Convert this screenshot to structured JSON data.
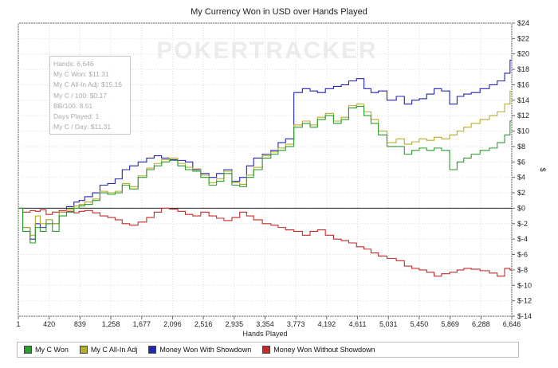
{
  "chart_data": {
    "type": "line",
    "title": "My Currency Won in USD over Hands Played",
    "xlabel": "Hands Played",
    "ylabel": "$",
    "x_ticks": [
      "1",
      "420",
      "839",
      "1,258",
      "1,677",
      "2,096",
      "2,516",
      "2,935",
      "3,354",
      "3,773",
      "4,192",
      "4,611",
      "5,031",
      "5,450",
      "5,869",
      "6,288",
      "6,646"
    ],
    "y_ticks": [
      "$24",
      "$22",
      "$20",
      "$18",
      "$16",
      "$14",
      "$12",
      "$10",
      "$8",
      "$6",
      "$4",
      "$2",
      "$0",
      "$-2",
      "$-4",
      "$-6",
      "$-8",
      "$-10",
      "$-12",
      "$-14"
    ],
    "xlim": [
      1,
      6646
    ],
    "ylim": [
      -14,
      24
    ],
    "grid": true,
    "legend_position": "bottom",
    "watermark": "POKERTRACKER",
    "series": [
      {
        "name": "My C Won",
        "color": "#2e9b2e",
        "x": [
          1,
          120,
          200,
          260,
          330,
          420,
          500,
          600,
          700,
          800,
          839,
          950,
          1050,
          1150,
          1258,
          1350,
          1450,
          1550,
          1677,
          1780,
          1880,
          1980,
          2096,
          2200,
          2300,
          2400,
          2516,
          2620,
          2720,
          2820,
          2935,
          3030,
          3120,
          3220,
          3354,
          3450,
          3550,
          3650,
          3773,
          3880,
          3980,
          4080,
          4192,
          4300,
          4400,
          4500,
          4611,
          4700,
          4800,
          4900,
          5031,
          5150,
          5250,
          5350,
          5450,
          5550,
          5650,
          5750,
          5869,
          5950,
          6050,
          6150,
          6288,
          6400,
          6500,
          6600,
          6646
        ],
        "y": [
          0,
          -3,
          -4.5,
          -2.5,
          -3,
          -2,
          -3,
          -1,
          -0.5,
          0,
          0.3,
          0.5,
          1,
          2,
          1.8,
          2,
          3,
          2.5,
          4,
          5,
          5.5,
          6,
          6.2,
          5.5,
          5,
          4.8,
          4,
          3,
          3.5,
          4.5,
          3,
          2.8,
          4,
          5,
          6.5,
          7,
          7.5,
          8,
          10.5,
          11,
          10.5,
          11.5,
          12,
          11,
          11.5,
          13,
          13.2,
          12,
          11,
          9.5,
          8,
          8,
          7,
          7.5,
          7.8,
          7.5,
          7.8,
          7.5,
          5,
          6,
          6.5,
          7,
          7.5,
          7.8,
          8.5,
          9.5,
          11.31
        ]
      },
      {
        "name": "My C All-In Adj",
        "color": "#b5ae2a",
        "x": [
          1,
          120,
          200,
          260,
          330,
          420,
          500,
          600,
          700,
          800,
          839,
          950,
          1050,
          1150,
          1258,
          1350,
          1450,
          1550,
          1677,
          1780,
          1880,
          1980,
          2096,
          2200,
          2300,
          2400,
          2516,
          2620,
          2720,
          2820,
          2935,
          3030,
          3120,
          3220,
          3354,
          3450,
          3550,
          3650,
          3773,
          3880,
          3980,
          4080,
          4192,
          4300,
          4400,
          4500,
          4611,
          4700,
          4800,
          4900,
          5031,
          5150,
          5250,
          5350,
          5450,
          5550,
          5650,
          5750,
          5869,
          5950,
          6050,
          6150,
          6288,
          6400,
          6500,
          6600,
          6646
        ],
        "y": [
          0,
          -2.5,
          -3.5,
          -1,
          -2,
          -1.5,
          -2,
          -0.5,
          -0.2,
          0.3,
          0.5,
          0.8,
          1.2,
          2.2,
          2,
          2.2,
          3.2,
          2.8,
          4.2,
          5.2,
          5.8,
          6.3,
          6.5,
          5.8,
          5.3,
          5.1,
          4.3,
          3.3,
          3.8,
          4.8,
          3.3,
          3.1,
          4.3,
          5.3,
          6.8,
          7.3,
          7.8,
          8.3,
          10.8,
          11.3,
          10.8,
          11.8,
          12.3,
          11.3,
          11.8,
          13.3,
          13.5,
          12.5,
          11.5,
          10,
          8.5,
          9,
          8.3,
          8.6,
          9,
          8.8,
          9.2,
          9,
          9.5,
          10,
          10.5,
          11,
          11.5,
          12,
          12.5,
          13.5,
          15.16
        ]
      },
      {
        "name": "Money Won With Showdown",
        "color": "#2424b8",
        "x": [
          1,
          120,
          200,
          260,
          330,
          420,
          500,
          600,
          700,
          800,
          839,
          950,
          1050,
          1150,
          1258,
          1350,
          1450,
          1550,
          1677,
          1780,
          1880,
          1980,
          2096,
          2200,
          2300,
          2400,
          2516,
          2620,
          2720,
          2820,
          2935,
          3030,
          3120,
          3220,
          3354,
          3450,
          3550,
          3650,
          3773,
          3880,
          3980,
          4080,
          4192,
          4300,
          4400,
          4500,
          4611,
          4700,
          4800,
          4900,
          5031,
          5150,
          5250,
          5350,
          5450,
          5550,
          5650,
          5750,
          5869,
          5950,
          6050,
          6150,
          6288,
          6400,
          6500,
          6600,
          6646
        ],
        "y": [
          0,
          -2.5,
          -4,
          -2,
          -2.5,
          -1.5,
          -2,
          -0.5,
          0.2,
          0.8,
          1,
          1.5,
          2,
          3,
          3.2,
          3.8,
          5,
          5.5,
          6,
          6.5,
          6.8,
          6.5,
          6.3,
          6.2,
          6,
          5,
          4.5,
          4,
          4.5,
          5,
          3.5,
          4,
          5.5,
          6.5,
          7,
          7.5,
          8.5,
          9,
          15,
          15.5,
          15.2,
          15,
          15.5,
          15.8,
          16,
          16.5,
          16.8,
          15.5,
          15,
          15.2,
          14,
          14.5,
          13.5,
          14,
          14.2,
          14.8,
          15.5,
          15.2,
          13.5,
          14.5,
          14.8,
          15,
          15.5,
          16,
          16.5,
          17.5,
          19.2
        ]
      },
      {
        "name": "Money Won Without Showdown",
        "color": "#c42a2a",
        "x": [
          1,
          120,
          200,
          260,
          330,
          420,
          500,
          600,
          700,
          800,
          839,
          950,
          1050,
          1150,
          1258,
          1350,
          1450,
          1550,
          1677,
          1780,
          1880,
          1980,
          2096,
          2200,
          2300,
          2400,
          2516,
          2620,
          2720,
          2820,
          2935,
          3030,
          3120,
          3220,
          3354,
          3450,
          3550,
          3650,
          3773,
          3880,
          3980,
          4080,
          4192,
          4300,
          4400,
          4500,
          4611,
          4700,
          4800,
          4900,
          5031,
          5150,
          5250,
          5350,
          5450,
          5550,
          5650,
          5750,
          5869,
          5950,
          6050,
          6150,
          6288,
          6400,
          6500,
          6600,
          6646
        ],
        "y": [
          0,
          -0.5,
          -0.3,
          -0.4,
          -0.2,
          -0.8,
          -0.5,
          -0.3,
          -0.4,
          -0.6,
          -0.4,
          -0.3,
          -0.6,
          -1,
          -1.2,
          -1.5,
          -2,
          -2.2,
          -1.8,
          -1.2,
          -0.5,
          0,
          -0.1,
          -0.4,
          -0.8,
          -1,
          -0.5,
          -1,
          -1.3,
          -1.6,
          -1.2,
          -0.5,
          -1,
          -1.5,
          -2,
          -2.2,
          -2.5,
          -2.8,
          -3,
          -3.5,
          -3,
          -2.8,
          -3.5,
          -4,
          -4.2,
          -4.5,
          -5,
          -5.3,
          -5.8,
          -6.2,
          -6.5,
          -6.8,
          -7.5,
          -7.8,
          -8,
          -8.3,
          -8.8,
          -8.5,
          -8.3,
          -8,
          -7.8,
          -7.9,
          -8.1,
          -8.4,
          -8.8,
          -7.8,
          -8
        ]
      }
    ]
  },
  "stats": {
    "hands": "Hands: 6,646",
    "won": "My C Won: $11.31",
    "allin_adj": "My C All-In Adj: $15.16",
    "per100": "My C / 100: $0.17",
    "bb100": "BB/100: 8.51",
    "days": "Days Played: 1",
    "per_day": "My C / Day: $11.31"
  }
}
